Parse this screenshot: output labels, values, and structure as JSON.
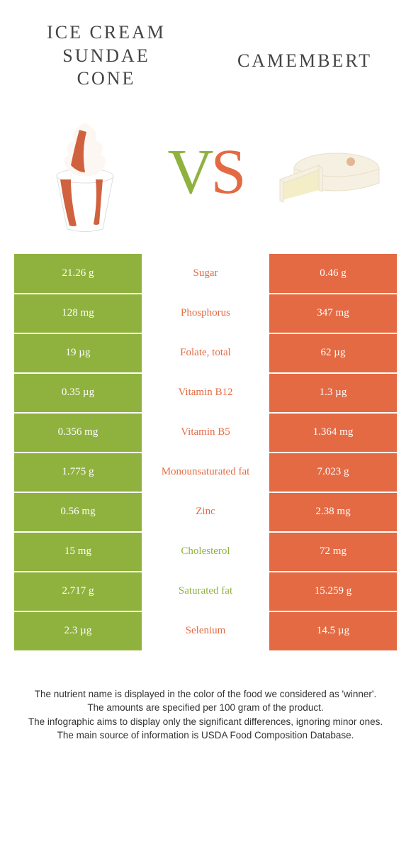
{
  "header": {
    "left_title": "ICE CREAM\nSUNDAE\nCONE",
    "right_title": "CAMEMBERT",
    "vs_v": "V",
    "vs_s": "S"
  },
  "colors": {
    "left": "#8fb23f",
    "right": "#e46a44",
    "bg": "#ffffff",
    "text": "#333333"
  },
  "rows": [
    {
      "left": "21.26 g",
      "label": "Sugar",
      "right": "0.46 g",
      "winner": "right"
    },
    {
      "left": "128 mg",
      "label": "Phosphorus",
      "right": "347 mg",
      "winner": "right"
    },
    {
      "left": "19 µg",
      "label": "Folate, total",
      "right": "62 µg",
      "winner": "right"
    },
    {
      "left": "0.35 µg",
      "label": "Vitamin B12",
      "right": "1.3 µg",
      "winner": "right"
    },
    {
      "left": "0.356 mg",
      "label": "Vitamin B5",
      "right": "1.364 mg",
      "winner": "right"
    },
    {
      "left": "1.775 g",
      "label": "Monounsaturated fat",
      "right": "7.023 g",
      "winner": "right"
    },
    {
      "left": "0.56 mg",
      "label": "Zinc",
      "right": "2.38 mg",
      "winner": "right"
    },
    {
      "left": "15 mg",
      "label": "Cholesterol",
      "right": "72 mg",
      "winner": "left"
    },
    {
      "left": "2.717 g",
      "label": "Saturated fat",
      "right": "15.259 g",
      "winner": "left"
    },
    {
      "left": "2.3 µg",
      "label": "Selenium",
      "right": "14.5 µg",
      "winner": "right"
    }
  ],
  "footer": {
    "line1": "The nutrient name is displayed in the color of the food we considered as 'winner'.",
    "line2": "The amounts are specified per 100 gram of the product.",
    "line3": "The infographic aims to display only the significant differences, ignoring minor ones.",
    "line4": "The main source of information is USDA Food Composition Database."
  }
}
